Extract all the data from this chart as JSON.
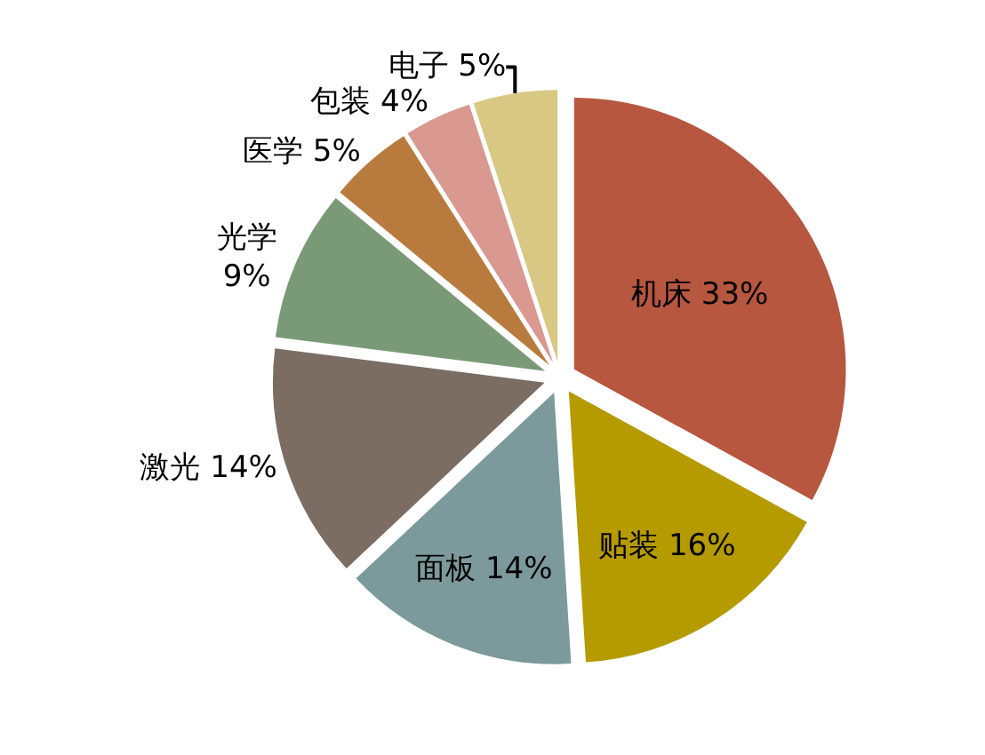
{
  "chart_data": {
    "type": "pie",
    "categories": [
      "机床",
      "贴装",
      "面板",
      "激光",
      "光学",
      "医学",
      "包装",
      "电子"
    ],
    "values": [
      33,
      16,
      14,
      14,
      9,
      5,
      4,
      5
    ],
    "value_labels": [
      "33%",
      "16%",
      "14%",
      "14%",
      "9%",
      "5%",
      "4%",
      "5%"
    ],
    "colors": [
      "#b7573f",
      "#b59b00",
      "#7c9a9b",
      "#7c6d63",
      "#7a9a77",
      "#b97b3d",
      "#d99890",
      "#d8c884"
    ],
    "legend": false
  }
}
